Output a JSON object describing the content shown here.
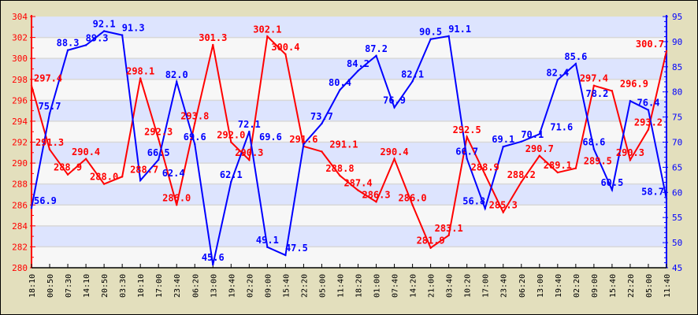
{
  "chart_data": {
    "type": "line",
    "title": "",
    "xlabel": "",
    "ylabel_left": "",
    "ylabel_right": "",
    "categories": [
      "18:10",
      "00:50",
      "07:30",
      "14:10",
      "20:50",
      "03:30",
      "10:10",
      "17:00",
      "23:40",
      "06:20",
      "13:00",
      "19:40",
      "02:20",
      "09:00",
      "15:40",
      "22:20",
      "05:00",
      "11:40",
      "18:20",
      "01:00",
      "07:40",
      "14:20",
      "21:00",
      "03:40",
      "10:20",
      "17:00",
      "23:40",
      "06:20",
      "13:00",
      "19:40",
      "02:20",
      "09:00",
      "15:40",
      "22:20",
      "05:00",
      "11:40"
    ],
    "left_axis": {
      "range": [
        280,
        304
      ],
      "ticks": [
        280,
        282,
        284,
        286,
        288,
        290,
        292,
        294,
        296,
        298,
        300,
        302,
        304
      ],
      "color": "#ff0000"
    },
    "right_axis": {
      "range": [
        45,
        95
      ],
      "ticks": [
        45,
        50,
        55,
        60,
        65,
        70,
        75,
        80,
        85,
        90,
        95
      ],
      "color": "#0000ff"
    },
    "grid": true,
    "band_colors": [
      "#dde4fe",
      "#f7f7f7"
    ],
    "series": [
      {
        "axis": "left",
        "color": "#ff0000",
        "values": [
          297.4,
          291.3,
          288.9,
          290.4,
          288.0,
          288.7,
          298.1,
          292.3,
          286.0,
          293.8,
          301.3,
          292.0,
          290.3,
          302.1,
          300.4,
          291.6,
          291.1,
          288.8,
          287.4,
          286.3,
          290.4,
          286.0,
          281.9,
          283.1,
          292.5,
          288.9,
          285.3,
          288.2,
          290.7,
          289.1,
          289.5,
          297.4,
          296.9,
          290.3,
          293.2,
          300.7
        ]
      },
      {
        "axis": "right",
        "color": "#0000ff",
        "values": [
          56.9,
          75.7,
          88.3,
          89.3,
          92.1,
          91.3,
          62.4,
          66.5,
          82.0,
          69.6,
          45.6,
          62.1,
          72.1,
          49.1,
          47.5,
          69.6,
          73.7,
          80.4,
          84.2,
          87.2,
          76.9,
          82.1,
          90.5,
          91.1,
          66.7,
          56.8,
          69.1,
          70.1,
          71.6,
          82.4,
          85.6,
          68.6,
          60.5,
          78.2,
          76.4,
          58.7
        ]
      }
    ]
  }
}
